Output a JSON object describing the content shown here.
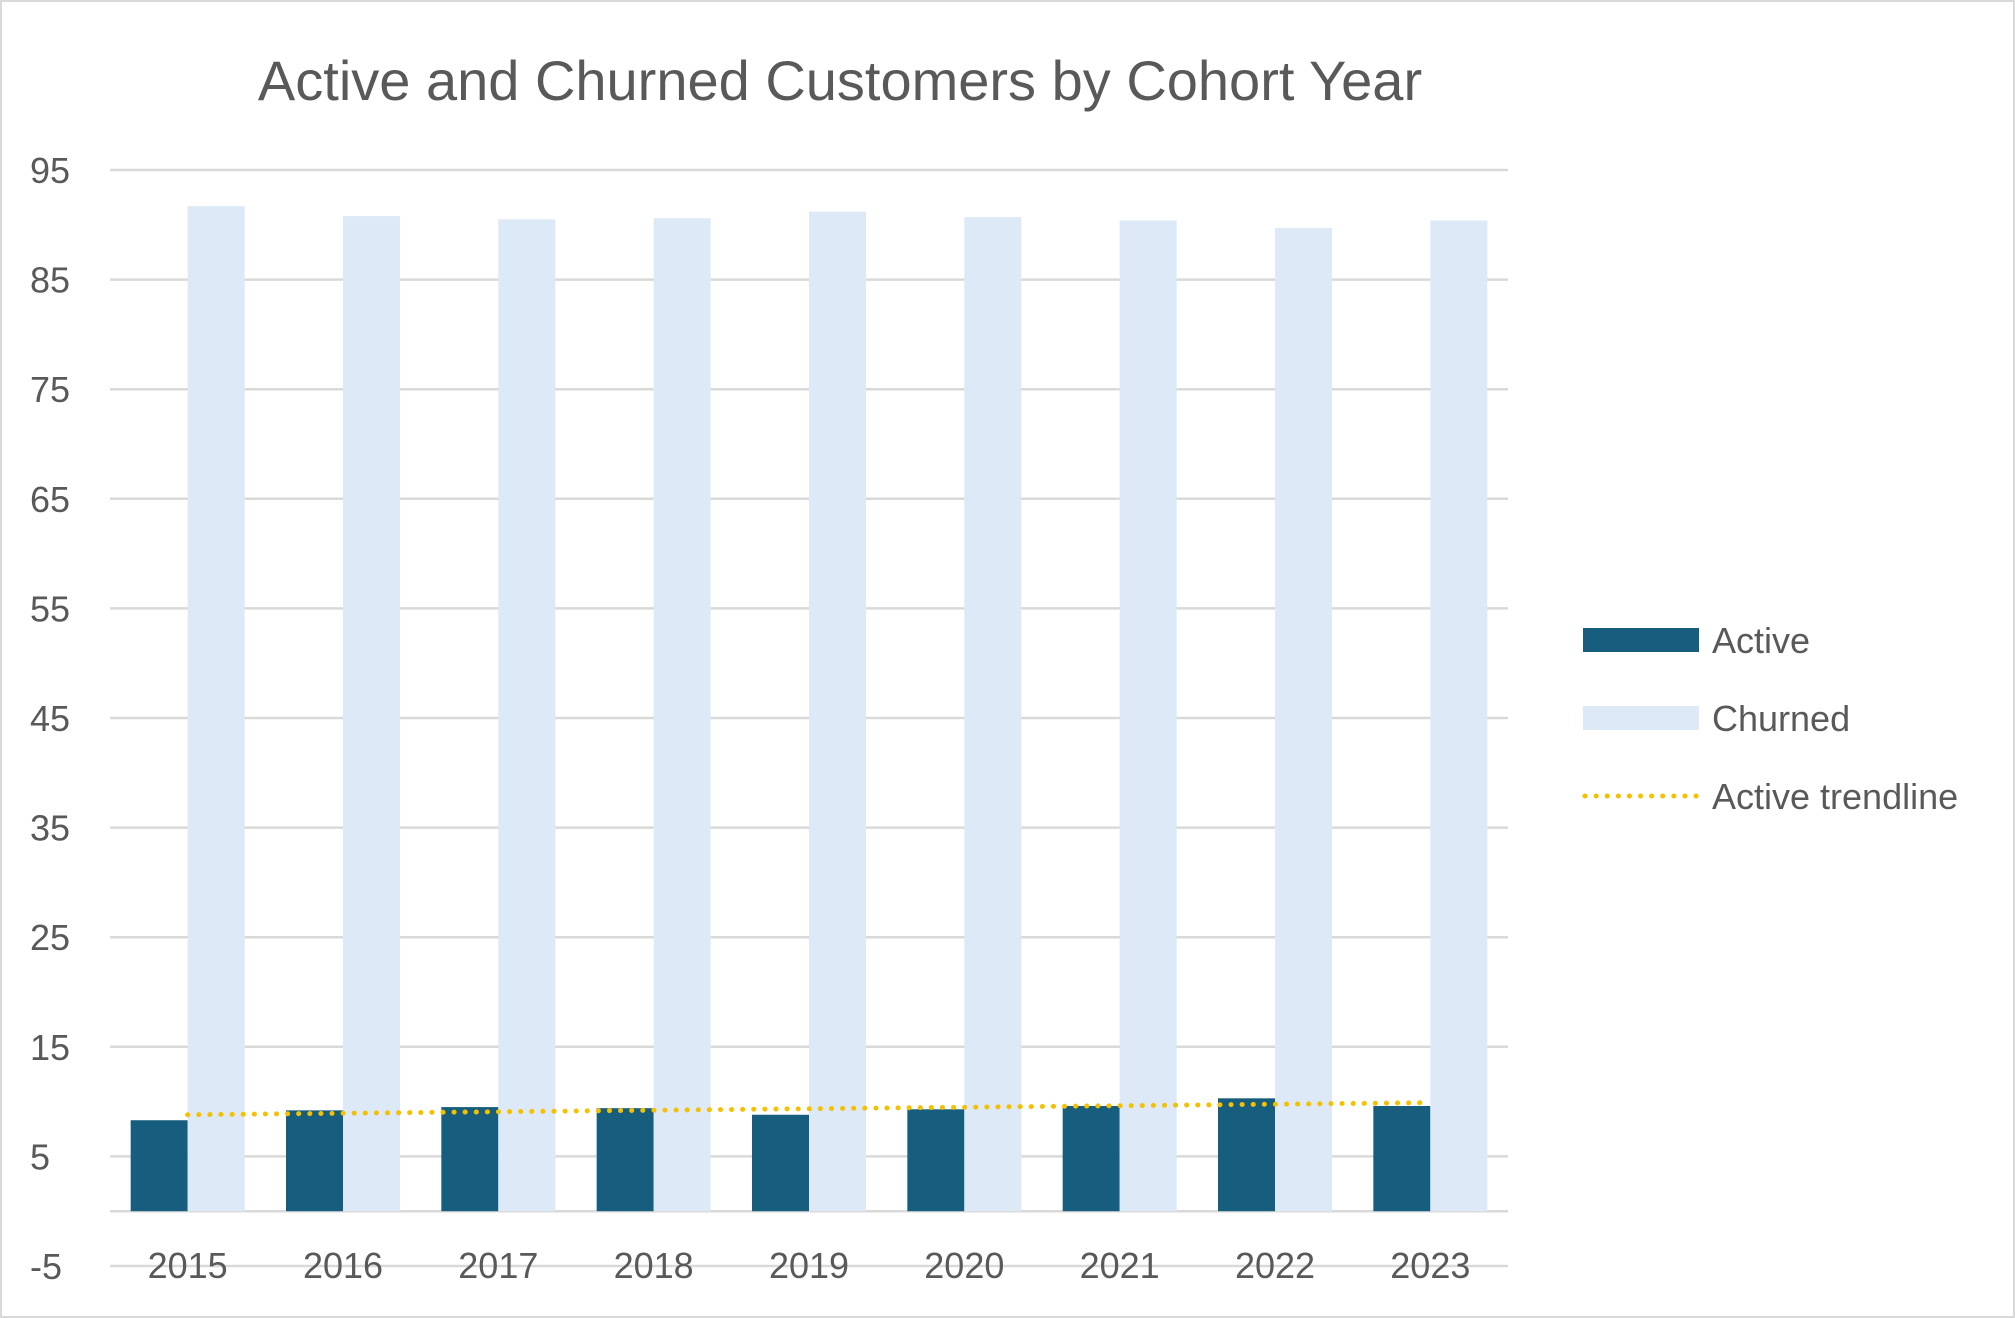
{
  "chart_data": {
    "type": "bar",
    "title": "Active and Churned Customers by Cohort Year",
    "xlabel": "",
    "ylabel": "",
    "categories": [
      "2015",
      "2016",
      "2017",
      "2018",
      "2019",
      "2020",
      "2021",
      "2022",
      "2023"
    ],
    "series": [
      {
        "name": "Active",
        "values": [
          8.3,
          9.2,
          9.5,
          9.4,
          8.8,
          9.3,
          9.6,
          10.3,
          9.6
        ],
        "color": "#175e7e"
      },
      {
        "name": "Churned",
        "values": [
          91.7,
          90.8,
          90.5,
          90.6,
          91.2,
          90.7,
          90.4,
          89.7,
          90.4
        ],
        "color": "#dde9f6"
      }
    ],
    "trendline": {
      "name": "Active trendline",
      "of_series": "Active",
      "kind": "linear",
      "start": 8.8,
      "end": 9.9,
      "color": "#f5c000",
      "style": "dotted"
    },
    "yticks": [
      "95",
      "85",
      "75",
      "65",
      "55",
      "45",
      "35",
      "25",
      "15",
      "5",
      "-5"
    ],
    "ylim": [
      -5,
      95
    ],
    "grid": true,
    "legend_position": "right"
  }
}
